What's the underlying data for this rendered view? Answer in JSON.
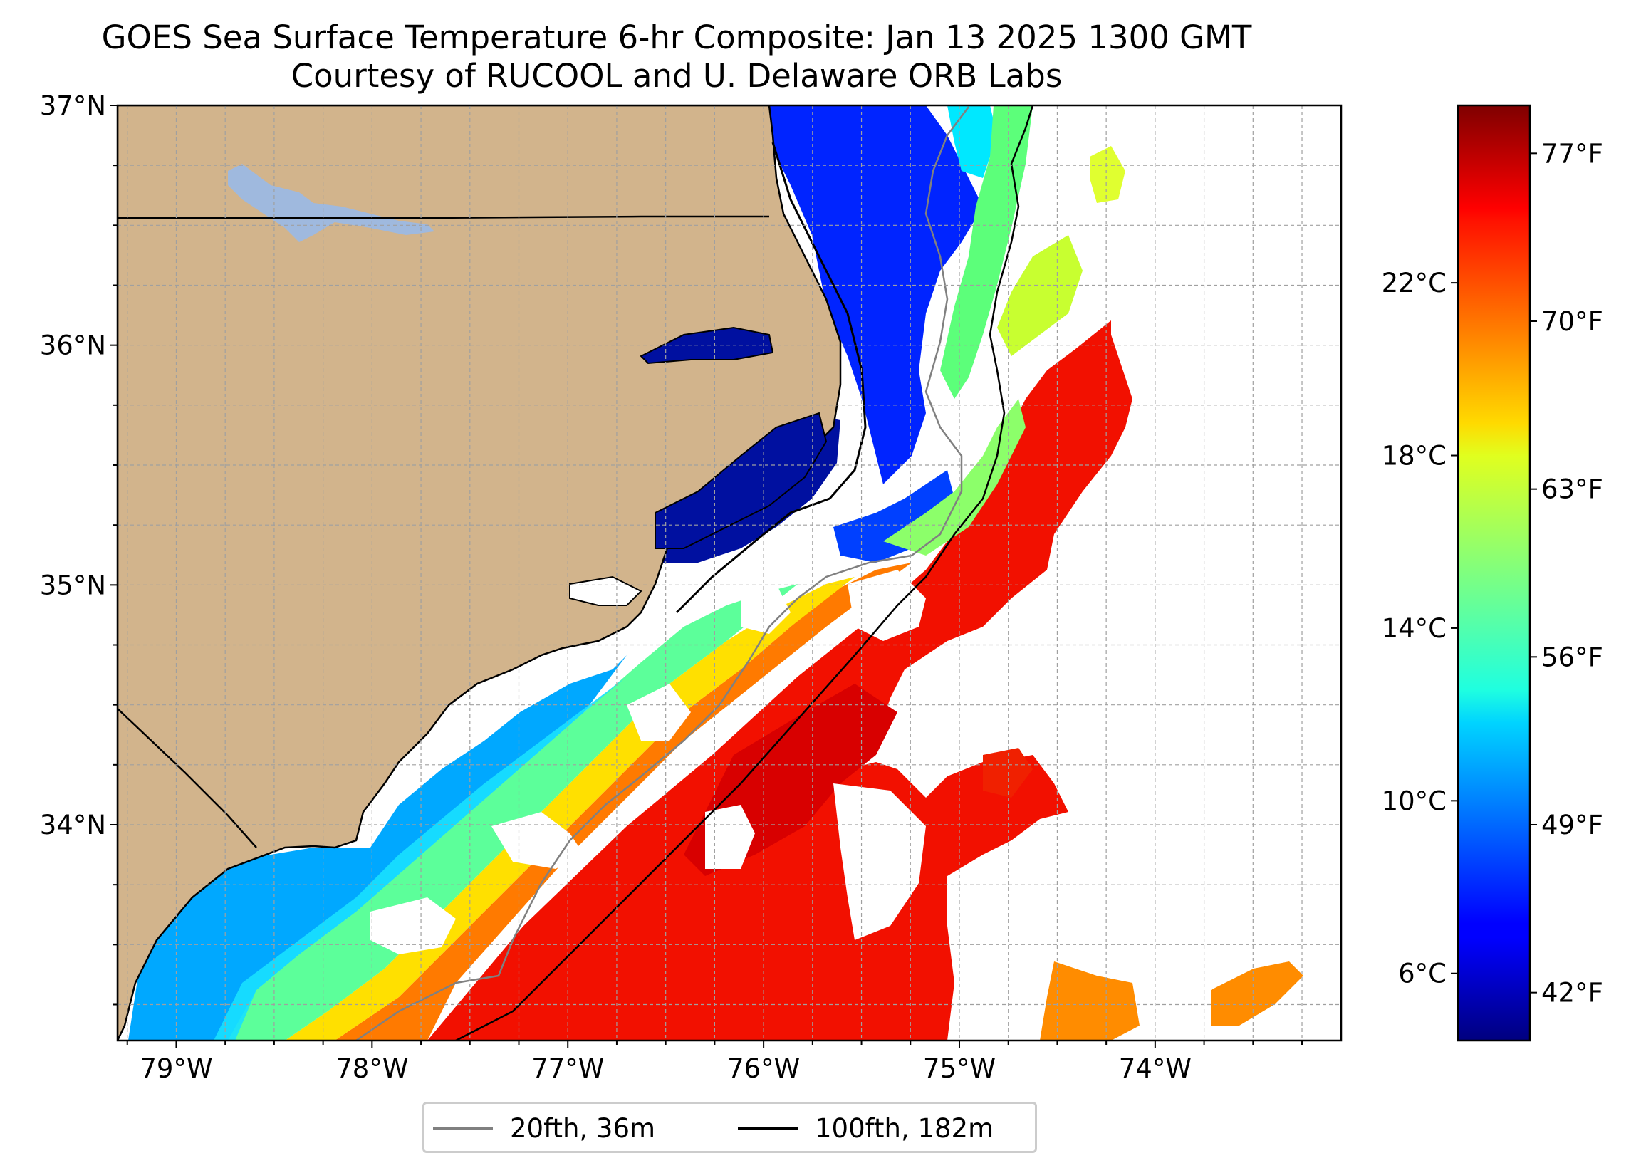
{
  "title": {
    "line1": "GOES Sea Surface Temperature 6-hr Composite: Jan 13 2025 1300 GMT",
    "line2": "Courtesy of RUCOOL and U. Delaware ORB Labs"
  },
  "map": {
    "lon_range": [
      -79.3,
      -73.05
    ],
    "lat_range": [
      33.1,
      37.0
    ],
    "lat_ticks": [
      {
        "label": "37°N",
        "lat": 37
      },
      {
        "label": "36°N",
        "lat": 36
      },
      {
        "label": "35°N",
        "lat": 35
      },
      {
        "label": "34°N",
        "lat": 34
      }
    ],
    "lon_ticks": [
      {
        "label": "79°W",
        "lon": -79
      },
      {
        "label": "78°W",
        "lon": -78
      },
      {
        "label": "77°W",
        "lon": -77
      },
      {
        "label": "76°W",
        "lon": -76
      },
      {
        "label": "75°W",
        "lon": -75
      },
      {
        "label": "74°W",
        "lon": -74
      }
    ],
    "grid": "dashed, every 0.25°",
    "colors": {
      "land": "#d2b48c",
      "lakes": "#9fb9de",
      "no_data": "#ffffff",
      "isobath_20fth": "#808080",
      "isobath_100fth": "#000000"
    }
  },
  "colorbar": {
    "colormap": "jet",
    "range_f": [
      40.0,
      79.0
    ],
    "celsius_ticks": [
      {
        "label": "6°C",
        "value_c": 6
      },
      {
        "label": "10°C",
        "value_c": 10
      },
      {
        "label": "14°C",
        "value_c": 14
      },
      {
        "label": "18°C",
        "value_c": 18
      },
      {
        "label": "22°C",
        "value_c": 22
      }
    ],
    "fahrenheit_ticks": [
      {
        "label": "42°F",
        "value_f": 42
      },
      {
        "label": "49°F",
        "value_f": 49
      },
      {
        "label": "56°F",
        "value_f": 56
      },
      {
        "label": "63°F",
        "value_f": 63
      },
      {
        "label": "70°F",
        "value_f": 70
      },
      {
        "label": "77°F",
        "value_f": 77
      }
    ]
  },
  "legend": {
    "items": [
      {
        "label": "20fth, 36m",
        "color": "#808080"
      },
      {
        "label": "100fth, 182m",
        "color": "#000000"
      }
    ]
  }
}
